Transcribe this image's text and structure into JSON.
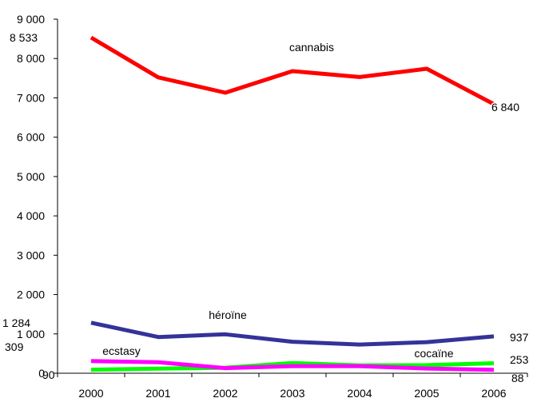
{
  "chart_data": {
    "type": "line",
    "title": "",
    "xlabel": "",
    "ylabel": "",
    "ylim": [
      0,
      9000
    ],
    "yticks": [
      0,
      1000,
      2000,
      3000,
      4000,
      5000,
      6000,
      7000,
      8000,
      9000
    ],
    "ytick_labels": [
      "0",
      "1 000",
      "2 000",
      "3 000",
      "4 000",
      "5 000",
      "6 000",
      "7 000",
      "8 000",
      "9 000"
    ],
    "categories": [
      "2000",
      "2001",
      "2002",
      "2003",
      "2004",
      "2005",
      "2006"
    ],
    "grid": false,
    "legend": "none",
    "series": [
      {
        "name": "cannabis",
        "color": "#ff0000",
        "values": [
          8533,
          7520,
          7130,
          7680,
          7530,
          7740,
          6840
        ]
      },
      {
        "name": "héroïne",
        "color": "#333399",
        "values": [
          1284,
          920,
          990,
          800,
          730,
          790,
          937
        ]
      },
      {
        "name": "cocaïne",
        "color": "#00ff00",
        "values": [
          90,
          115,
          140,
          260,
          200,
          205,
          253
        ]
      },
      {
        "name": "ecstasy",
        "color": "#ff00ff",
        "values": [
          309,
          280,
          130,
          180,
          180,
          120,
          88
        ]
      }
    ],
    "annotations": [
      {
        "text": "8 533"
      },
      {
        "text": "6 840"
      },
      {
        "text": "1 284"
      },
      {
        "text": "937"
      },
      {
        "text": "309"
      },
      {
        "text": "90"
      },
      {
        "text": "253"
      },
      {
        "text": "88"
      }
    ]
  }
}
